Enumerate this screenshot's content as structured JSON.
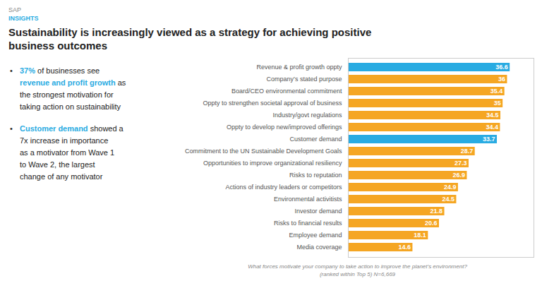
{
  "chart_data": {
    "type": "bar",
    "orientation": "horizontal",
    "title": "Sustainability is increasingly viewed as a strategy for achieving positive\nbusiness outcomes",
    "annotations": [
      [
        [
          {
            "text": "SAP"
          }
        ],
        [
          {
            "text": "INSIGHTS",
            "color": "#29ABE2"
          }
        ]
      ],
      [
        [
          {
            "text": "•"
          },
          {
            "text": "37%",
            "color": "#29ABE2"
          },
          {
            "text": "of businesses see"
          }
        ],
        [
          {
            "text": "revenue and profit growth",
            "color": "#29ABE2"
          },
          {
            "text": "as"
          }
        ],
        [
          {
            "text": "the strongest motivation for"
          }
        ],
        [
          {
            "text": "taking action on sustainability"
          }
        ],
        [
          {
            "text": "•"
          },
          {
            "text": "Customer demand",
            "color": "#29ABE2"
          },
          {
            "text": "showed a"
          }
        ],
        [
          {
            "text": "7x"
          },
          {
            "text": "increase in importance"
          }
        ],
        [
          {
            "text": "as a motivator from Wave 1"
          }
        ],
        [
          {
            "text": "to Wave 2, the largest"
          }
        ],
        [
          {
            "text": "change of any motivator"
          }
        ]
      ],
      [
        [
          {
            "text": "What forces motivate your company to take action to improve the planet’s environment?"
          }
        ],
        [
          {
            "text": "(ranked within Top 5)  N=6,669"
          }
        ]
      ]
    ],
    "categories": [
      "Revenue & profit growth oppty",
      "Company’s stated purpose",
      "Board/CEO environmental commitment",
      "Oppty to strengthen societal approval of business",
      "Industry/govt regulations",
      "Oppty to develop new/improved offerings",
      "Customer demand",
      "Commitment to the UN Sustainable Development Goals",
      "Opportunities to improve organizational resiliency",
      "Risks to reputation",
      "Actions of industry leaders or competitors",
      "Environmental activitists",
      "Investor demand",
      "Risks to financial results",
      "Employee demand",
      "Media coverage"
    ],
    "values": [
      36.6,
      36,
      35.4,
      35,
      34.5,
      34.4,
      33.7,
      28.7,
      27.3,
      26.9,
      24.9,
      24.5,
      21.8,
      20.6,
      18.1,
      14.6
    ],
    "colors": [
      "#29ABE2",
      "#F5A623",
      "#F5A623",
      "#F5A623",
      "#F5A623",
      "#F5A623",
      "#29ABE2",
      "#F5A623",
      "#F5A623",
      "#F5A623",
      "#F5A623",
      "#F5A623",
      "#F5A623",
      "#F5A623",
      "#F5A623",
      "#F5A623"
    ],
    "xlim": [
      0,
      42
    ],
    "data_labels": true,
    "tick_labels": "y"
  }
}
